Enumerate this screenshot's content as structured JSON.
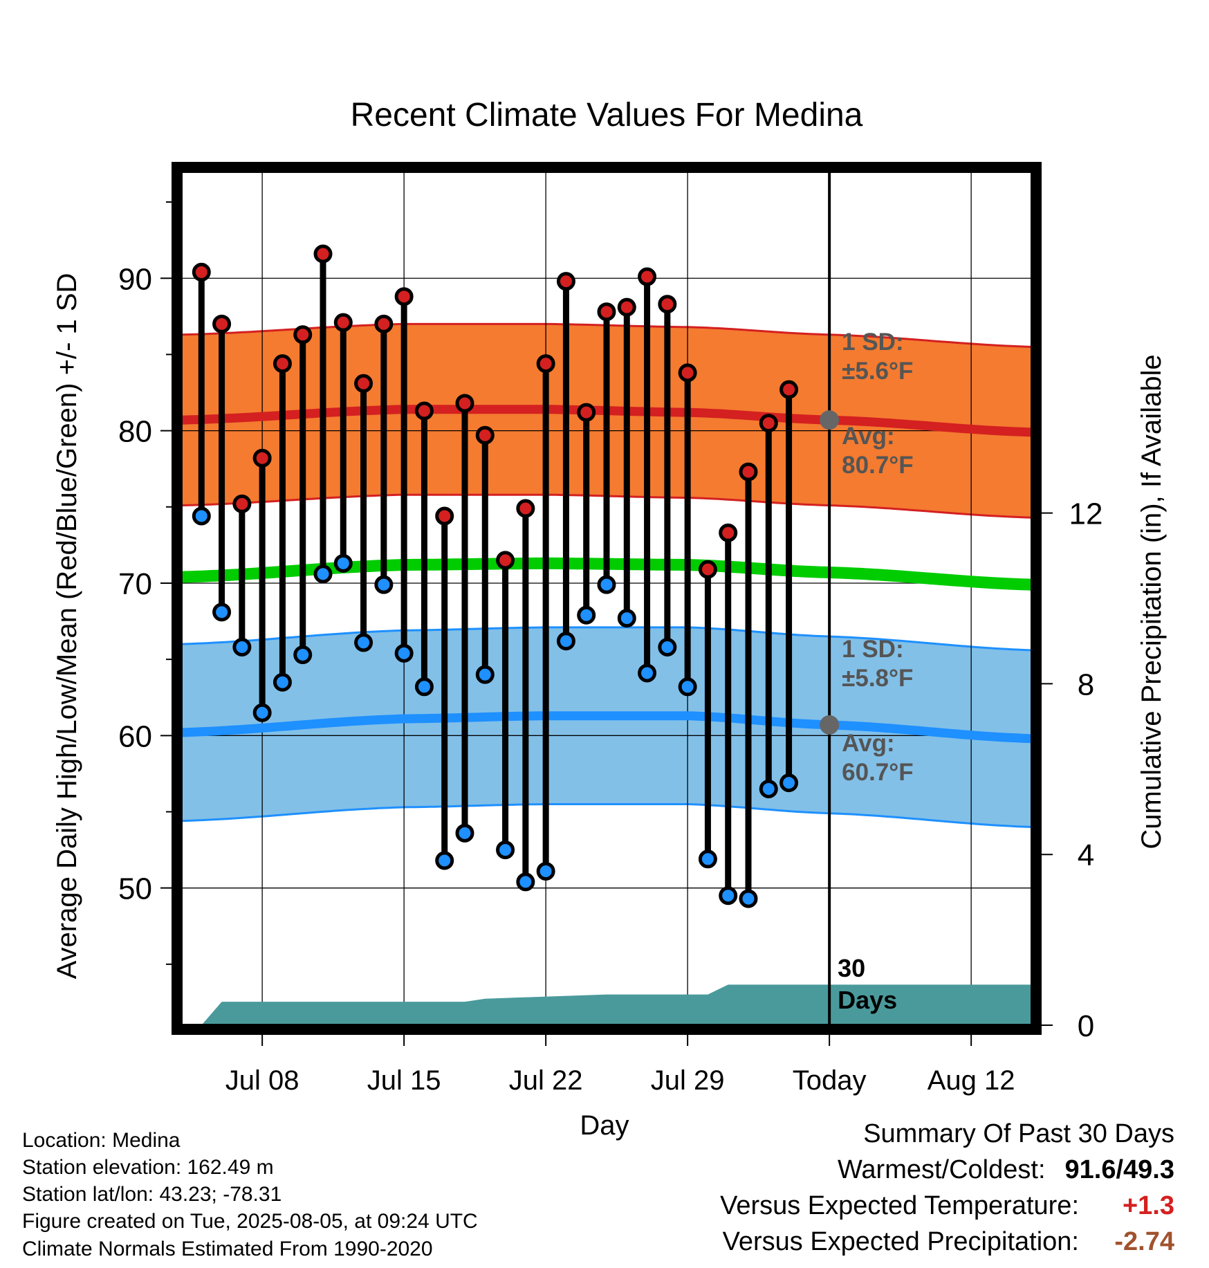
{
  "chart_data": {
    "type": "line",
    "title": "Recent Climate Values For Medina",
    "xlabel": "Day",
    "ylabel": "Average Daily High/Low/Mean (Red/Blue/Green) +/- 1 SD",
    "y2label": "Cumulative Precipitation (in), If Available",
    "ylim": [
      41,
      97
    ],
    "y2lim": [
      0,
      20
    ],
    "xlim": [
      "2025-07-04",
      "2025-08-15"
    ],
    "x_ticks": [
      "Jul 08",
      "Jul 15",
      "Jul 22",
      "Jul 29",
      "Today",
      "Aug 12"
    ],
    "y_ticks": [
      50,
      60,
      70,
      80,
      90
    ],
    "y2_ticks": [
      0,
      4,
      8,
      12
    ],
    "today": "2025-08-05",
    "window_label": "30 Days",
    "grid": true,
    "daily": {
      "dates": [
        "2025-07-05",
        "2025-07-06",
        "2025-07-07",
        "2025-07-08",
        "2025-07-09",
        "2025-07-10",
        "2025-07-11",
        "2025-07-12",
        "2025-07-13",
        "2025-07-14",
        "2025-07-15",
        "2025-07-16",
        "2025-07-17",
        "2025-07-18",
        "2025-07-19",
        "2025-07-20",
        "2025-07-21",
        "2025-07-22",
        "2025-07-23",
        "2025-07-24",
        "2025-07-25",
        "2025-07-26",
        "2025-07-27",
        "2025-07-28",
        "2025-07-29",
        "2025-07-30",
        "2025-07-31",
        "2025-08-01",
        "2025-08-02",
        "2025-08-03",
        "2025-08-04"
      ],
      "highs": [
        90.4,
        87.0,
        75.2,
        78.2,
        84.4,
        86.3,
        91.6,
        87.1,
        83.1,
        87.0,
        88.8,
        81.3,
        74.4,
        81.8,
        79.7,
        71.5,
        74.9,
        84.4,
        89.8,
        81.2,
        87.8,
        88.1,
        90.1,
        88.3,
        83.8,
        70.9,
        73.3,
        77.3,
        80.5,
        82.7,
        null
      ],
      "lows": [
        74.4,
        68.1,
        65.8,
        61.5,
        63.5,
        65.3,
        70.6,
        71.3,
        66.1,
        69.9,
        65.4,
        63.2,
        51.8,
        53.6,
        64.0,
        52.5,
        50.4,
        51.1,
        66.2,
        67.9,
        69.9,
        67.7,
        64.1,
        65.8,
        63.2,
        51.9,
        49.5,
        49.3,
        56.5,
        56.9,
        null
      ]
    },
    "normals": {
      "dates": [
        "2025-07-04",
        "2025-07-15",
        "2025-07-22",
        "2025-07-29",
        "2025-08-05",
        "2025-08-15"
      ],
      "high_avg": [
        80.7,
        81.4,
        81.4,
        81.2,
        80.7,
        79.9
      ],
      "low_avg": [
        60.2,
        61.1,
        61.3,
        61.3,
        60.7,
        59.8
      ],
      "mean_avg": [
        70.4,
        71.2,
        71.3,
        71.2,
        70.7,
        69.9
      ],
      "high_sd": 5.6,
      "low_sd": 5.8
    },
    "precip": {
      "dates": [
        "2025-07-05",
        "2025-07-06",
        "2025-07-18",
        "2025-07-19",
        "2025-07-25",
        "2025-07-30",
        "2025-07-31",
        "2025-08-15"
      ],
      "values": [
        0.0,
        0.55,
        0.55,
        0.62,
        0.72,
        0.72,
        0.95,
        0.95
      ]
    },
    "annotations": {
      "high_sd_label": [
        "1 SD:",
        "±5.6°F"
      ],
      "high_avg_label": [
        "Avg:",
        "80.7°F"
      ],
      "low_sd_label": [
        "1 SD:",
        "±5.8°F"
      ],
      "low_avg_label": [
        "Avg:",
        "60.7°F"
      ]
    },
    "colors": {
      "high_band": "#f47b30",
      "high_line": "#d42020",
      "low_band": "#82c0e8",
      "low_line": "#1e90ff",
      "mean_line": "#00cc00",
      "precip": "#4a9a9c",
      "high_marker": "#d42020",
      "low_marker": "#1e90ff",
      "annotation_text": "#555555"
    }
  },
  "footer": {
    "location": "Location: Medina",
    "elevation": "Station elevation: 162.49 m",
    "latlon": "Station lat/lon: 43.23; -78.31",
    "created": "Figure created on Tue, 2025-08-05, at 09:24 UTC",
    "normals": "Climate Normals Estimated From 1990-2020"
  },
  "summary": {
    "title": "Summary Of Past 30 Days",
    "warm_cold_label": "Warmest/Coldest:",
    "warm_cold_value": "91.6/49.3",
    "temp_label": "Versus Expected Temperature:",
    "temp_value": "+1.3",
    "temp_color": "#d42020",
    "precip_label": "Versus Expected Precipitation:",
    "precip_value": "-2.74",
    "precip_color": "#a0522d"
  }
}
